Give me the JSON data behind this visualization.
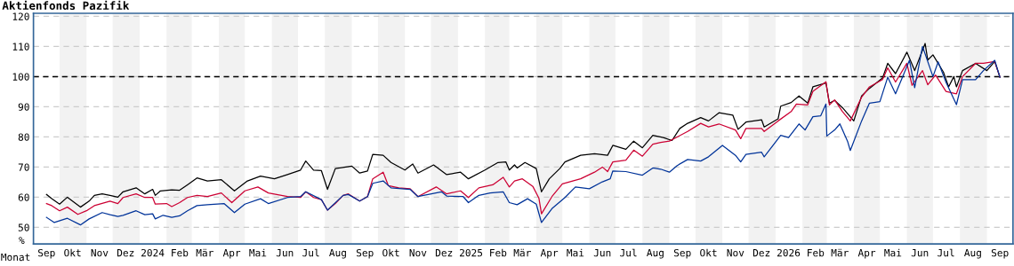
{
  "chart_data": {
    "type": "line",
    "title": "Aktienfonds Pazifik",
    "xlabel": "Monat",
    "ylabel": "%",
    "xlim": [
      "2023-09-01",
      "2026-10-01"
    ],
    "ylim": [
      44.5,
      121
    ],
    "yticks": [
      50,
      60,
      70,
      80,
      90,
      100,
      110,
      120
    ],
    "xticks": [
      {
        "value": "2023-09-16",
        "label": "Sep"
      },
      {
        "value": "2023-10-16",
        "label": "Okt"
      },
      {
        "value": "2023-11-16",
        "label": "Nov"
      },
      {
        "value": "2023-12-16",
        "label": "Dez"
      },
      {
        "value": "2024-01-16",
        "label": "2024"
      },
      {
        "value": "2024-02-16",
        "label": "Feb"
      },
      {
        "value": "2024-03-16",
        "label": "Mär"
      },
      {
        "value": "2024-04-16",
        "label": "Apr"
      },
      {
        "value": "2024-05-16",
        "label": "Mai"
      },
      {
        "value": "2024-06-16",
        "label": "Jun"
      },
      {
        "value": "2024-07-16",
        "label": "Jul"
      },
      {
        "value": "2024-08-16",
        "label": "Aug"
      },
      {
        "value": "2024-09-16",
        "label": "Sep"
      },
      {
        "value": "2024-10-16",
        "label": "Okt"
      },
      {
        "value": "2024-11-16",
        "label": "Nov"
      },
      {
        "value": "2024-12-16",
        "label": "Dez"
      },
      {
        "value": "2025-01-16",
        "label": "2025"
      },
      {
        "value": "2025-02-16",
        "label": "Feb"
      },
      {
        "value": "2025-03-16",
        "label": "Mär"
      },
      {
        "value": "2025-04-16",
        "label": "Apr"
      },
      {
        "value": "2025-05-16",
        "label": "Mai"
      },
      {
        "value": "2025-06-16",
        "label": "Jun"
      },
      {
        "value": "2025-07-16",
        "label": "Jul"
      },
      {
        "value": "2025-08-16",
        "label": "Aug"
      },
      {
        "value": "2025-09-16",
        "label": "Sep"
      },
      {
        "value": "2025-10-16",
        "label": "Okt"
      },
      {
        "value": "2025-11-16",
        "label": "Nov"
      },
      {
        "value": "2025-12-16",
        "label": "Dez"
      },
      {
        "value": "2026-01-16",
        "label": "2026"
      },
      {
        "value": "2026-02-16",
        "label": "Feb"
      },
      {
        "value": "2026-03-16",
        "label": "Mär"
      },
      {
        "value": "2026-04-16",
        "label": "Apr"
      },
      {
        "value": "2026-05-16",
        "label": "Mai"
      },
      {
        "value": "2026-06-16",
        "label": "Jun"
      },
      {
        "value": "2026-07-16",
        "label": "Jul"
      },
      {
        "value": "2026-08-16",
        "label": "Aug"
      },
      {
        "value": "2026-09-16",
        "label": "Sep"
      }
    ],
    "grid": "y",
    "line_style": "solid",
    "marker": "none",
    "ref_lines": [
      {
        "axis": "y",
        "value": 100,
        "color": "#000000",
        "line_style": "dashed"
      }
    ],
    "bands": [
      {
        "axis": "x",
        "from": "2023-10-01",
        "to": "2023-11-01",
        "color": "#f2f2f2"
      },
      {
        "axis": "x",
        "from": "2023-12-01",
        "to": "2024-01-01",
        "color": "#f2f2f2"
      },
      {
        "axis": "x",
        "from": "2024-02-01",
        "to": "2024-03-01",
        "color": "#f2f2f2"
      },
      {
        "axis": "x",
        "from": "2024-04-01",
        "to": "2024-05-01",
        "color": "#f2f2f2"
      },
      {
        "axis": "x",
        "from": "2024-06-01",
        "to": "2024-07-01",
        "color": "#f2f2f2"
      },
      {
        "axis": "x",
        "from": "2024-08-01",
        "to": "2024-09-01",
        "color": "#f2f2f2"
      },
      {
        "axis": "x",
        "from": "2024-10-01",
        "to": "2024-11-01",
        "color": "#f2f2f2"
      },
      {
        "axis": "x",
        "from": "2024-12-01",
        "to": "2025-01-01",
        "color": "#f2f2f2"
      },
      {
        "axis": "x",
        "from": "2025-02-01",
        "to": "2025-03-01",
        "color": "#f2f2f2"
      },
      {
        "axis": "x",
        "from": "2025-04-01",
        "to": "2025-05-01",
        "color": "#f2f2f2"
      },
      {
        "axis": "x",
        "from": "2025-06-01",
        "to": "2025-07-01",
        "color": "#f2f2f2"
      },
      {
        "axis": "x",
        "from": "2025-08-01",
        "to": "2025-09-01",
        "color": "#f2f2f2"
      },
      {
        "axis": "x",
        "from": "2025-10-01",
        "to": "2025-11-01",
        "color": "#f2f2f2"
      },
      {
        "axis": "x",
        "from": "2025-12-01",
        "to": "2026-01-01",
        "color": "#f2f2f2"
      },
      {
        "axis": "x",
        "from": "2026-02-01",
        "to": "2026-03-01",
        "color": "#f2f2f2"
      },
      {
        "axis": "x",
        "from": "2026-04-01",
        "to": "2026-05-01",
        "color": "#f2f2f2"
      },
      {
        "axis": "x",
        "from": "2026-06-01",
        "to": "2026-07-01",
        "color": "#f2f2f2"
      },
      {
        "axis": "x",
        "from": "2026-08-01",
        "to": "2026-09-01",
        "color": "#f2f2f2"
      }
    ],
    "series": [
      {
        "color": "#000000",
        "x": [
          "2023-09-16",
          "2023-09-22",
          "2023-10-01",
          "2023-10-10",
          "2023-10-25",
          "2023-11-04",
          "2023-11-10",
          "2023-11-19",
          "2023-11-28",
          "2023-12-07",
          "2023-12-13",
          "2023-12-28",
          "2024-01-07",
          "2024-01-16",
          "2024-01-19",
          "2024-01-25",
          "2024-02-07",
          "2024-02-16",
          "2024-02-25",
          "2024-03-07",
          "2024-03-19",
          "2024-04-04",
          "2024-04-19",
          "2024-05-04",
          "2024-05-19",
          "2024-06-04",
          "2024-06-19",
          "2024-07-04",
          "2024-07-10",
          "2024-07-19",
          "2024-07-28",
          "2024-08-04",
          "2024-08-13",
          "2024-08-25",
          "2024-09-01",
          "2024-09-10",
          "2024-09-19",
          "2024-09-25",
          "2024-10-07",
          "2024-10-16",
          "2024-11-01",
          "2024-11-10",
          "2024-11-16",
          "2024-12-04",
          "2024-12-19",
          "2025-01-04",
          "2025-01-13",
          "2025-02-01",
          "2025-02-16",
          "2025-02-25",
          "2025-03-01",
          "2025-03-07",
          "2025-03-10",
          "2025-03-19",
          "2025-04-01",
          "2025-04-07",
          "2025-04-16",
          "2025-04-28",
          "2025-05-04",
          "2025-05-22",
          "2025-06-07",
          "2025-06-22",
          "2025-06-28",
          "2025-07-13",
          "2025-07-22",
          "2025-08-01",
          "2025-08-13",
          "2025-08-25",
          "2025-09-04",
          "2025-09-13",
          "2025-09-22",
          "2025-10-07",
          "2025-10-16",
          "2025-10-28",
          "2025-11-13",
          "2025-11-19",
          "2025-11-28",
          "2025-12-16",
          "2025-12-19",
          "2026-01-04",
          "2026-01-07",
          "2026-01-19",
          "2026-01-28",
          "2026-02-07",
          "2026-02-13",
          "2026-02-28",
          "2026-03-04",
          "2026-03-10",
          "2026-03-19",
          "2026-04-01",
          "2026-04-10",
          "2026-04-19",
          "2026-05-04",
          "2026-05-10",
          "2026-05-19",
          "2026-06-01",
          "2026-06-10",
          "2026-06-22",
          "2026-06-25",
          "2026-07-01",
          "2026-07-13",
          "2026-07-19",
          "2026-07-25",
          "2026-07-28",
          "2026-08-04",
          "2026-08-19",
          "2026-09-01",
          "2026-09-10",
          "2026-09-16"
        ],
        "values": [
          60.9,
          59.5,
          57.7,
          60.0,
          56.7,
          58.7,
          60.6,
          61.1,
          60.6,
          60.0,
          61.8,
          63.1,
          61.1,
          62.6,
          60.6,
          62.1,
          62.4,
          62.3,
          64.1,
          66.4,
          65.4,
          65.8,
          62.1,
          65.4,
          67.0,
          66.1,
          67.5,
          69.0,
          72.0,
          69.0,
          68.8,
          62.6,
          69.5,
          70.0,
          70.3,
          68.0,
          68.7,
          74.2,
          73.9,
          71.5,
          69.0,
          71.0,
          68.0,
          70.7,
          67.5,
          68.3,
          66.1,
          69.0,
          71.5,
          71.7,
          69.0,
          70.7,
          69.7,
          71.5,
          69.5,
          61.8,
          66.1,
          69.5,
          71.7,
          73.9,
          74.4,
          73.9,
          77.2,
          75.9,
          78.6,
          76.4,
          80.5,
          79.8,
          78.8,
          82.8,
          84.5,
          86.4,
          85.3,
          88.0,
          87.2,
          82.5,
          84.9,
          85.7,
          83.3,
          86.0,
          90.2,
          91.4,
          93.6,
          91.2,
          96.6,
          97.9,
          91.2,
          92.1,
          89.7,
          85.3,
          93.6,
          96.1,
          99.5,
          104.4,
          101.0,
          108.1,
          102.0,
          111.0,
          105.5,
          107.2,
          101.5,
          96.6,
          100.0,
          96.6,
          102.0,
          104.4,
          102.0,
          105.0,
          99.8
        ]
      },
      {
        "color": "#cc0033",
        "x": [
          "2023-09-16",
          "2023-09-22",
          "2023-10-01",
          "2023-10-10",
          "2023-10-22",
          "2023-11-01",
          "2023-11-10",
          "2023-11-28",
          "2023-12-07",
          "2023-12-13",
          "2023-12-28",
          "2024-01-07",
          "2024-01-16",
          "2024-01-19",
          "2024-02-01",
          "2024-02-07",
          "2024-02-16",
          "2024-02-25",
          "2024-03-07",
          "2024-03-19",
          "2024-04-04",
          "2024-04-16",
          "2024-05-01",
          "2024-05-16",
          "2024-05-28",
          "2024-06-19",
          "2024-07-04",
          "2024-07-10",
          "2024-07-19",
          "2024-07-28",
          "2024-08-04",
          "2024-08-13",
          "2024-08-22",
          "2024-08-28",
          "2024-09-10",
          "2024-09-19",
          "2024-09-25",
          "2024-10-07",
          "2024-10-13",
          "2024-10-25",
          "2024-11-07",
          "2024-11-16",
          "2024-12-07",
          "2024-12-19",
          "2025-01-04",
          "2025-01-13",
          "2025-01-25",
          "2025-02-10",
          "2025-02-22",
          "2025-03-01",
          "2025-03-07",
          "2025-03-16",
          "2025-03-28",
          "2025-04-04",
          "2025-04-07",
          "2025-04-19",
          "2025-05-01",
          "2025-05-22",
          "2025-06-07",
          "2025-06-16",
          "2025-06-22",
          "2025-06-28",
          "2025-07-13",
          "2025-07-22",
          "2025-08-01",
          "2025-08-13",
          "2025-08-22",
          "2025-09-01",
          "2025-09-22",
          "2025-10-07",
          "2025-10-16",
          "2025-10-28",
          "2025-11-16",
          "2025-11-22",
          "2025-11-28",
          "2025-12-16",
          "2025-12-19",
          "2026-01-04",
          "2026-01-19",
          "2026-01-25",
          "2026-02-07",
          "2026-02-13",
          "2026-02-28",
          "2026-03-04",
          "2026-03-10",
          "2026-03-19",
          "2026-03-28",
          "2026-04-10",
          "2026-04-19",
          "2026-05-04",
          "2026-05-10",
          "2026-05-19",
          "2026-06-01",
          "2026-06-07",
          "2026-06-19",
          "2026-06-25",
          "2026-07-04",
          "2026-07-16",
          "2026-07-28",
          "2026-08-04",
          "2026-08-19",
          "2026-08-28",
          "2026-09-10",
          "2026-09-16"
        ],
        "values": [
          57.9,
          57.2,
          55.5,
          56.7,
          54.3,
          55.5,
          57.2,
          58.7,
          57.9,
          59.9,
          61.1,
          59.9,
          59.9,
          57.7,
          57.9,
          56.9,
          58.2,
          59.9,
          60.6,
          60.2,
          61.4,
          58.2,
          62.1,
          63.4,
          61.4,
          60.2,
          59.9,
          61.8,
          59.9,
          59.2,
          55.7,
          57.9,
          60.6,
          61.1,
          58.7,
          60.2,
          66.1,
          68.3,
          63.8,
          63.1,
          62.8,
          60.2,
          63.4,
          61.1,
          62.1,
          59.9,
          63.1,
          64.1,
          66.6,
          63.4,
          65.4,
          66.1,
          63.6,
          59.7,
          54.5,
          60.2,
          64.4,
          66.1,
          68.3,
          70.0,
          68.5,
          71.7,
          72.3,
          75.6,
          73.6,
          77.6,
          78.2,
          78.6,
          81.8,
          84.5,
          83.3,
          84.3,
          82.3,
          79.4,
          82.8,
          82.8,
          81.8,
          85.3,
          88.4,
          90.9,
          90.6,
          95.1,
          98.3,
          90.6,
          92.3,
          88.4,
          85.3,
          93.2,
          96.6,
          99.0,
          102.9,
          98.2,
          104.4,
          97.1,
          102.0,
          97.3,
          100.5,
          95.1,
          94.3,
          100.0,
          104.4,
          104.4,
          105.0,
          99.8
        ]
      },
      {
        "color": "#003399",
        "x": [
          "2023-09-16",
          "2023-09-25",
          "2023-10-10",
          "2023-10-25",
          "2023-11-04",
          "2023-11-19",
          "2023-11-28",
          "2023-12-07",
          "2023-12-13",
          "2023-12-28",
          "2024-01-07",
          "2024-01-16",
          "2024-01-19",
          "2024-01-28",
          "2024-02-07",
          "2024-02-16",
          "2024-02-25",
          "2024-03-07",
          "2024-03-19",
          "2024-04-07",
          "2024-04-19",
          "2024-05-01",
          "2024-05-19",
          "2024-05-28",
          "2024-06-19",
          "2024-07-04",
          "2024-07-10",
          "2024-07-28",
          "2024-08-04",
          "2024-08-22",
          "2024-08-28",
          "2024-09-10",
          "2024-09-19",
          "2024-09-25",
          "2024-10-07",
          "2024-10-16",
          "2024-11-07",
          "2024-11-16",
          "2024-12-13",
          "2024-12-19",
          "2025-01-07",
          "2025-01-13",
          "2025-01-25",
          "2025-02-07",
          "2025-02-22",
          "2025-03-01",
          "2025-03-10",
          "2025-03-22",
          "2025-04-01",
          "2025-04-07",
          "2025-04-19",
          "2025-05-04",
          "2025-05-16",
          "2025-06-01",
          "2025-06-16",
          "2025-06-25",
          "2025-06-28",
          "2025-07-13",
          "2025-08-01",
          "2025-08-13",
          "2025-08-22",
          "2025-09-01",
          "2025-09-10",
          "2025-09-22",
          "2025-10-07",
          "2025-10-16",
          "2025-11-01",
          "2025-11-16",
          "2025-11-22",
          "2025-11-28",
          "2025-12-16",
          "2025-12-19",
          "2026-01-07",
          "2026-01-16",
          "2026-01-28",
          "2026-02-04",
          "2026-02-13",
          "2026-02-22",
          "2026-02-28",
          "2026-03-01",
          "2026-03-10",
          "2026-03-16",
          "2026-03-25",
          "2026-03-28",
          "2026-04-10",
          "2026-04-19",
          "2026-05-01",
          "2026-05-10",
          "2026-05-19",
          "2026-06-04",
          "2026-06-10",
          "2026-06-19",
          "2026-07-01",
          "2026-07-07",
          "2026-07-16",
          "2026-07-28",
          "2026-08-04",
          "2026-08-19",
          "2026-08-28",
          "2026-09-10",
          "2026-09-16"
        ],
        "values": [
          53.3,
          51.6,
          53.0,
          50.8,
          52.8,
          54.9,
          54.2,
          53.6,
          54.0,
          55.5,
          54.2,
          54.5,
          52.8,
          54.0,
          53.3,
          53.8,
          55.5,
          57.2,
          57.5,
          57.9,
          54.9,
          57.7,
          59.5,
          57.9,
          59.9,
          60.2,
          61.8,
          59.2,
          55.7,
          60.6,
          60.9,
          58.7,
          60.2,
          64.6,
          65.4,
          63.1,
          62.6,
          60.2,
          61.8,
          60.4,
          60.2,
          58.2,
          60.6,
          61.4,
          61.8,
          58.2,
          57.5,
          59.5,
          57.7,
          51.6,
          56.2,
          59.9,
          63.4,
          62.8,
          65.1,
          66.1,
          68.7,
          68.5,
          67.3,
          69.7,
          69.3,
          68.3,
          70.5,
          72.5,
          72.0,
          73.4,
          77.2,
          73.9,
          71.7,
          74.2,
          74.9,
          73.4,
          80.5,
          79.8,
          84.3,
          82.3,
          86.7,
          87.0,
          90.9,
          80.3,
          82.3,
          84.3,
          78.4,
          75.5,
          85.3,
          91.2,
          91.7,
          99.8,
          94.3,
          105.4,
          96.3,
          110.0,
          100.0,
          104.9,
          98.1,
          90.7,
          99.0,
          99.0,
          102.0,
          105.4,
          99.8
        ]
      }
    ]
  }
}
